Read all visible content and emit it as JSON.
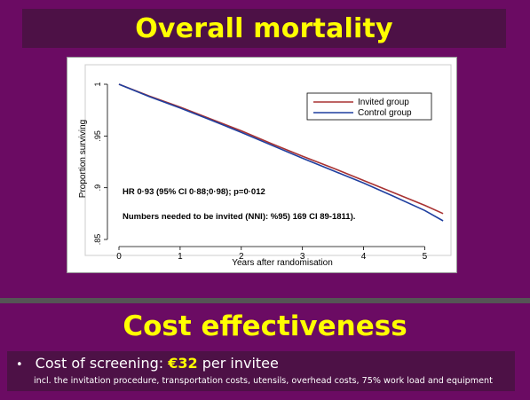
{
  "slide": {
    "title": "Overall mortality",
    "section_title": "Cost effectiveness",
    "bullet": {
      "marker": "•",
      "label_before": "Cost of screening: ",
      "amount": "€32",
      "label_after": " per invitee",
      "detail": "incl. the invitation procedure, transportation costs, utensils, overhead costs, 75% work load and equipment"
    }
  },
  "chart_data": {
    "type": "line",
    "xlabel": "Years after randomisation",
    "ylabel": "Proportion surviving",
    "xlim": [
      0,
      5.4
    ],
    "ylim": [
      0.85,
      1.0
    ],
    "x_ticks": [
      0,
      1,
      2,
      3,
      4,
      5
    ],
    "x_tick_labels": [
      "0",
      "1",
      "2",
      "3",
      "4",
      "5"
    ],
    "y_ticks": [
      0.85,
      0.9,
      0.95,
      1.0
    ],
    "y_tick_labels": [
      ".85",
      ".9",
      ".95",
      "1"
    ],
    "grid": false,
    "legend_position": "top-right",
    "x": [
      0,
      0.5,
      1,
      1.5,
      2,
      2.5,
      3,
      3.5,
      4,
      4.5,
      5,
      5.3
    ],
    "series": [
      {
        "name": "Invited group",
        "color": "#a83232",
        "values": [
          1.0,
          0.9885,
          0.978,
          0.9665,
          0.955,
          0.9425,
          0.9305,
          0.919,
          0.907,
          0.895,
          0.883,
          0.875
        ]
      },
      {
        "name": "Control group",
        "color": "#1f3f9f",
        "values": [
          1.0,
          0.988,
          0.977,
          0.9655,
          0.9535,
          0.941,
          0.9285,
          0.9165,
          0.9045,
          0.8915,
          0.878,
          0.868
        ]
      }
    ],
    "annotations": [
      "HR 0·93 (95% CI 0·88;0·98); p=0·012",
      "Numbers needed to be invited (NNI): %95) 169 CI 89-1811)."
    ]
  }
}
